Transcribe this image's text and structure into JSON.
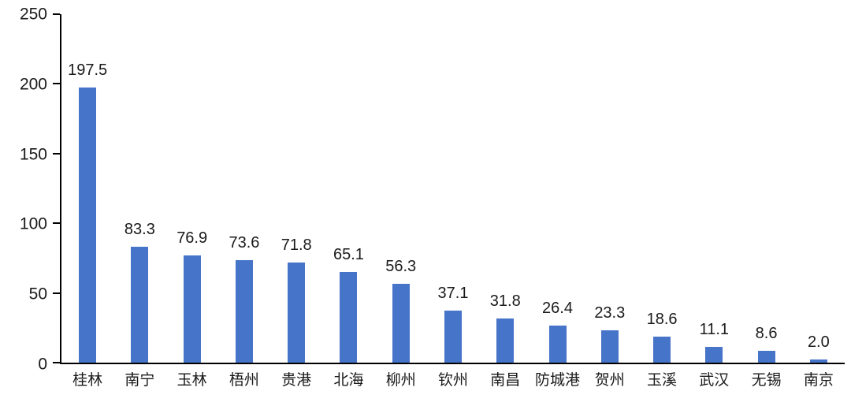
{
  "chart_data": {
    "type": "bar",
    "categories": [
      "桂林",
      "南宁",
      "玉林",
      "梧州",
      "贵港",
      "北海",
      "柳州",
      "钦州",
      "南昌",
      "防城港",
      "贺州",
      "玉溪",
      "武汉",
      "无锡",
      "南京"
    ],
    "values": [
      197.5,
      83.3,
      76.9,
      73.6,
      71.8,
      65.1,
      56.3,
      37.1,
      31.8,
      26.4,
      23.3,
      18.6,
      11.1,
      8.6,
      2.0
    ],
    "data_labels": [
      "197.5",
      "83.3",
      "76.9",
      "73.6",
      "71.8",
      "65.1",
      "56.3",
      "37.1",
      "31.8",
      "26.4",
      "23.3",
      "18.6",
      "11.1",
      "8.6",
      "2.0"
    ],
    "title": "",
    "xlabel": "",
    "ylabel": "",
    "ylim": [
      0,
      250
    ],
    "y_ticks": [
      0,
      50,
      100,
      150,
      200,
      250
    ],
    "grid": false,
    "legend_position": "none",
    "bar_color": "#4674C8",
    "axis_color": "#000000",
    "text_color": "#1A1A1A"
  }
}
